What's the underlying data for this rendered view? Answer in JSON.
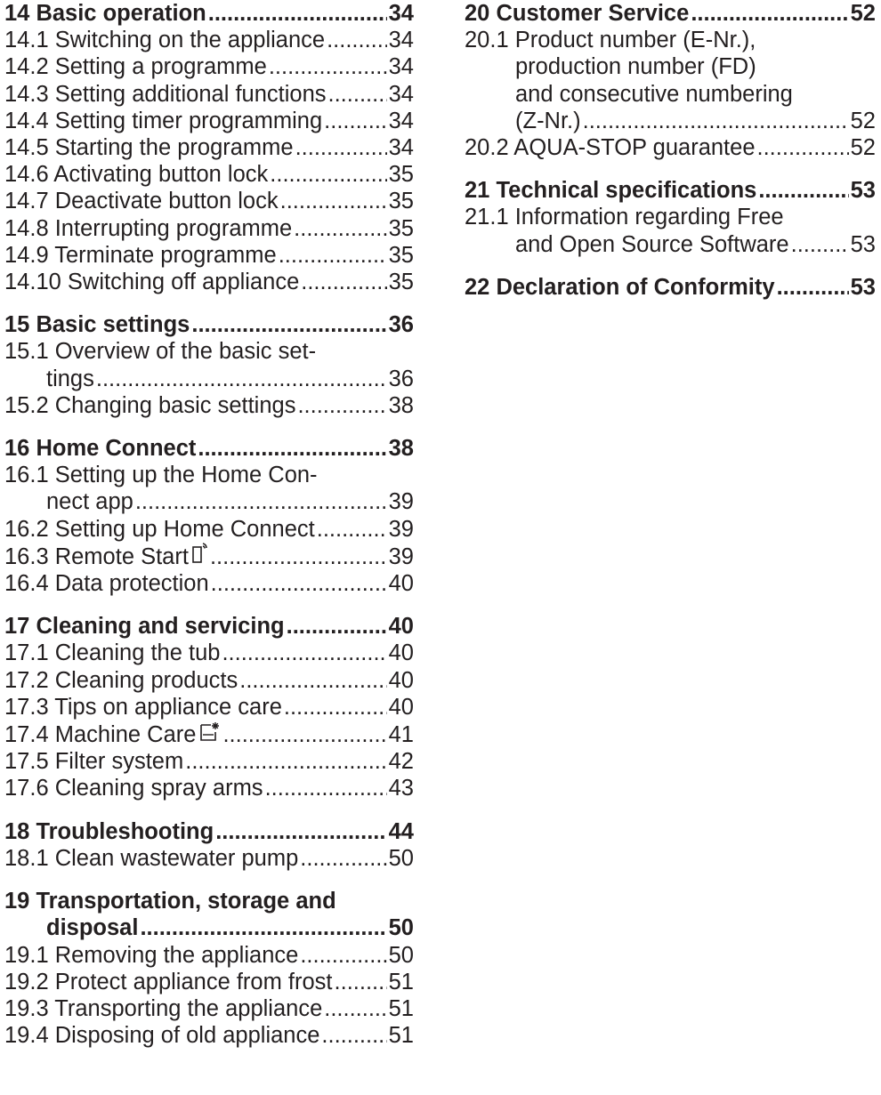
{
  "left": [
    {
      "heading": {
        "title": "14 Basic operation",
        "page": "34"
      },
      "items": [
        {
          "title": "14.1 Switching on the appliance",
          "page": "34"
        },
        {
          "title": "14.2 Setting a programme",
          "page": "34"
        },
        {
          "title": "14.3 Setting additional functions",
          "page": "34"
        },
        {
          "title": "14.4 Setting timer programming",
          "page": "34"
        },
        {
          "title": "14.5 Starting the programme",
          "page": "34"
        },
        {
          "title": "14.6 Activating button lock",
          "page": "35"
        },
        {
          "title": "14.7 Deactivate button lock",
          "page": "35"
        },
        {
          "title": "14.8 Interrupting programme",
          "page": "35"
        },
        {
          "title": "14.9 Terminate programme",
          "page": "35"
        },
        {
          "title": "14.10 Switching off appliance",
          "page": "35"
        }
      ]
    },
    {
      "heading": {
        "title": "15 Basic settings",
        "page": "36"
      },
      "items": [
        {
          "line1": "15.1 Overview of the basic set-",
          "line2": "tings",
          "page": "36"
        },
        {
          "title": "15.2 Changing basic settings",
          "page": "38"
        }
      ]
    },
    {
      "heading": {
        "title": "16 Home Connect",
        "page": "38"
      },
      "items": [
        {
          "line1": "16.1 Setting up the Home Con-",
          "line2": "nect app",
          "page": "39"
        },
        {
          "title": "16.2 Setting up Home Connect",
          "page": "39"
        },
        {
          "title": "16.3 Remote Start",
          "page": "39",
          "icon": "remote-start-icon"
        },
        {
          "title": "16.4 Data protection",
          "page": "40"
        }
      ]
    },
    {
      "heading": {
        "title": "17 Cleaning and servicing",
        "page": "40"
      },
      "items": [
        {
          "title": "17.1 Cleaning the tub",
          "page": "40"
        },
        {
          "title": "17.2 Cleaning products",
          "page": "40"
        },
        {
          "title": "17.3 Tips on appliance care",
          "page": "40"
        },
        {
          "title": "17.4 Machine Care",
          "page": "41",
          "icon": "machine-care-icon"
        },
        {
          "title": "17.5 Filter system",
          "page": "42"
        },
        {
          "title": "17.6 Cleaning spray arms",
          "page": "43"
        }
      ]
    },
    {
      "heading": {
        "title": "18 Troubleshooting",
        "page": "44"
      },
      "items": [
        {
          "title": "18.1 Clean wastewater pump",
          "page": "50"
        }
      ]
    },
    {
      "heading": {
        "line1": "19 Transportation, storage and",
        "line2": "disposal",
        "page": "50"
      },
      "items": [
        {
          "title": "19.1 Removing the appliance",
          "page": "50"
        },
        {
          "title": "19.2 Protect appliance from frost",
          "page": "51"
        },
        {
          "title": "19.3 Transporting the appliance",
          "page": "51"
        },
        {
          "title": "19.4 Disposing of old appliance",
          "page": "51"
        }
      ]
    }
  ],
  "right": [
    {
      "heading": {
        "title": "20 Customer Service",
        "page": "52"
      },
      "items": [
        {
          "line1": "20.1 Product number (E-Nr.),",
          "line2": "production number (FD)",
          "line3": "and consecutive numbering",
          "line4": "(Z-Nr.)",
          "page": "52"
        },
        {
          "title": "20.2 AQUA-STOP guarantee",
          "page": "52"
        }
      ]
    },
    {
      "heading": {
        "title": "21 Technical specifications",
        "page": "53"
      },
      "items": [
        {
          "line1": "21.1 Information regarding Free",
          "line2": "and Open Source Software",
          "page": "53"
        }
      ]
    },
    {
      "heading": {
        "title": "22 Declaration of Conformity",
        "page": "53"
      },
      "items": []
    }
  ]
}
